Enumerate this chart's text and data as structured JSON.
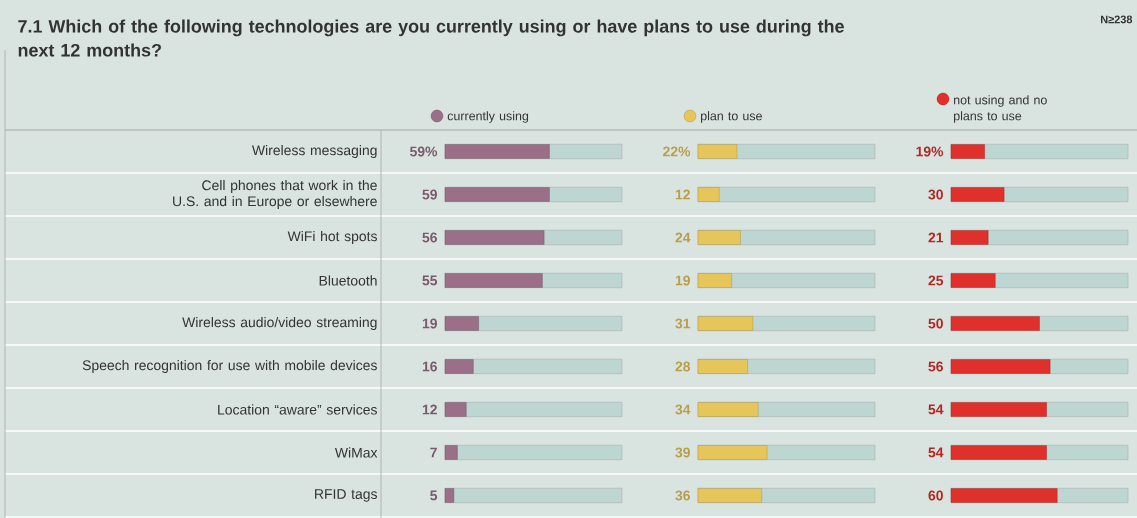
{
  "chart_data": [
    {
      "type": "bar",
      "orientation": "horizontal",
      "title": "7.1 Which of the following technologies are you currently using or have plans to use during the next 12 months?",
      "annotations": [
        "N≥238"
      ],
      "categories": [
        "Wireless messaging",
        "Cell phones that work in the U.S. and in Europe or elsewhere",
        "WiFi hot spots",
        "Bluetooth",
        "Wireless audio/video streaming",
        "Speech recognition for use with mobile devices",
        "Location “aware” services",
        "WiMax",
        "RFID tags"
      ],
      "xlim": [
        0,
        100
      ],
      "legend": "top",
      "tick_labels": "y",
      "series": [
        {
          "name": "currently using",
          "color": "#9a6f87",
          "values": [
            59,
            59,
            56,
            55,
            19,
            16,
            12,
            7,
            5
          ],
          "value_labels": [
            "59%",
            "59",
            "56",
            "55",
            "19",
            "16",
            "12",
            "7",
            "5"
          ]
        }
      ]
    },
    {
      "type": "bar",
      "orientation": "horizontal",
      "categories": [
        null,
        null,
        null,
        null,
        null,
        null,
        null,
        null,
        null
      ],
      "xlim": [
        0,
        100
      ],
      "legend": "top",
      "tick_labels": false,
      "series": [
        {
          "name": "plan to use",
          "color": "#e6c65a",
          "values": [
            22,
            12,
            24,
            19,
            31,
            28,
            34,
            39,
            36
          ],
          "value_labels": [
            "22%",
            "12",
            "24",
            "19",
            "31",
            "28",
            "34",
            "39",
            "36"
          ]
        }
      ]
    },
    {
      "type": "bar",
      "orientation": "horizontal",
      "categories": [
        null,
        null,
        null,
        null,
        null,
        null,
        null,
        null,
        null
      ],
      "xlim": [
        0,
        100
      ],
      "legend": "top",
      "tick_labels": false,
      "series": [
        {
          "name": "not using and no plans to use",
          "color": "#e0302c",
          "values": [
            19,
            30,
            21,
            25,
            50,
            56,
            54,
            54,
            60
          ],
          "value_labels": [
            "19%",
            "30",
            "21",
            "25",
            "50",
            "56",
            "54",
            "54",
            "60"
          ]
        }
      ]
    }
  ]
}
